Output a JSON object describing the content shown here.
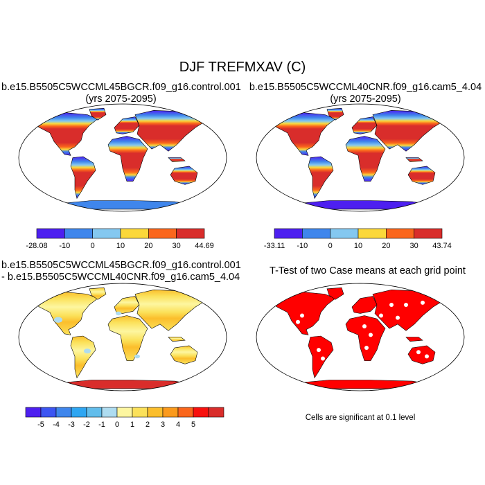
{
  "main_title": "DJF TREFMXAV (C)",
  "panels": [
    {
      "id": "case1",
      "title_lines": [
        "b.e15.B5505C5WCCML45BGCR.f09_g16.control.001",
        "(yrs 2075-2095)"
      ],
      "colorbar": {
        "colors": [
          "#4d1ff0",
          "#3f86ec",
          "#84c8f0",
          "#fbd83a",
          "#fa661c",
          "#d92d2b"
        ],
        "labels": [
          "-28.08",
          "-10",
          "0",
          "10",
          "20",
          "30",
          "44.69"
        ]
      }
    },
    {
      "id": "case2",
      "title_lines": [
        "b.e15.B5505C5WCCML40CNR.f09_g16.cam5_4.04",
        "(yrs 2075-2095)"
      ],
      "colorbar": {
        "colors": [
          "#4d1ff0",
          "#3f86ec",
          "#84c8f0",
          "#fbd83a",
          "#fa661c",
          "#d92d2b"
        ],
        "labels": [
          "-33.11",
          "-10",
          "0",
          "10",
          "20",
          "30",
          "43.74"
        ]
      }
    },
    {
      "id": "difference",
      "title_lines": [
        "b.e15.B5505C5WCCML45BGCR.f09_g16.control.001",
        "- b.e15.B5505C5WCCML40CNR.f09_g16.cam5_4.04"
      ],
      "colorbar": {
        "colors": [
          "#4d1ff0",
          "#3c55f2",
          "#3f86ec",
          "#2ea6f2",
          "#62bdeb",
          "#aedcf0",
          "#fdf6a0",
          "#fbe15a",
          "#fbbe2c",
          "#fb9a1c",
          "#fa661c",
          "#f8110d",
          "#d92d2b"
        ],
        "labels": [
          "-5",
          "-4",
          "-3",
          "-2",
          "-1",
          "0",
          "1",
          "2",
          "3",
          "4",
          "5"
        ]
      }
    },
    {
      "id": "ttest",
      "title_lines": [
        "T-Test of two Case means at each grid point"
      ],
      "note": "Cells are significant at 0.1 level"
    }
  ]
}
